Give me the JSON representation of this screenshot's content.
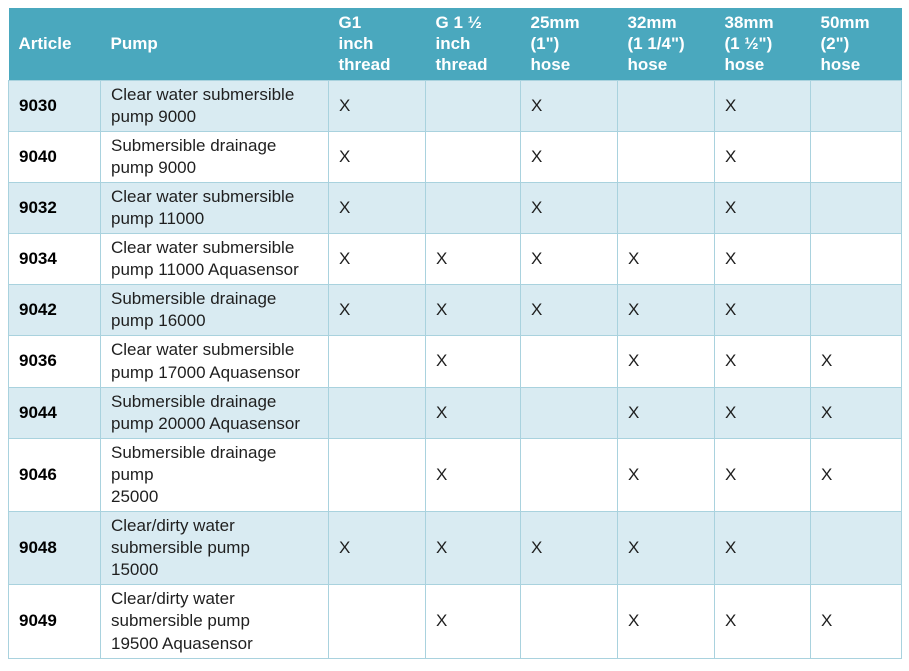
{
  "colors": {
    "header_bg": "#4AA8BE",
    "band_bg": "#D9EBF2",
    "border_color": "#A9D2DE",
    "header_text": "#FFFFFF",
    "body_text": "#1F1F1F",
    "article_text": "#000000"
  },
  "table": {
    "columns": [
      "Article",
      "Pump",
      "G1\ninch\nthread",
      "G 1 ½\ninch\nthread",
      "25mm\n(1\")\nhose",
      "32mm\n(1 1/4\")\nhose",
      "38mm\n(1 ½\")\nhose",
      "50mm\n(2\")\nhose"
    ],
    "mark_symbol": "X",
    "rows": [
      {
        "article": "9030",
        "pump": "Clear water submersible\npump 9000",
        "marks": [
          "X",
          "",
          "X",
          "",
          "X",
          ""
        ]
      },
      {
        "article": "9040",
        "pump": "Submersible drainage\npump 9000",
        "marks": [
          "X",
          "",
          "X",
          "",
          "X",
          ""
        ]
      },
      {
        "article": "9032",
        "pump": "Clear water submersible\npump 11000",
        "marks": [
          "X",
          "",
          "X",
          "",
          "X",
          ""
        ]
      },
      {
        "article": "9034",
        "pump": "Clear water submersible\npump 11000 Aquasensor",
        "marks": [
          "X",
          "X",
          "X",
          "X",
          "X",
          ""
        ]
      },
      {
        "article": "9042",
        "pump": "Submersible drainage\npump 16000",
        "marks": [
          "X",
          "X",
          "X",
          "X",
          "X",
          ""
        ]
      },
      {
        "article": "9036",
        "pump": "Clear water submersible\npump 17000 Aquasensor",
        "marks": [
          "",
          "X",
          "",
          "X",
          "X",
          "X"
        ]
      },
      {
        "article": "9044",
        "pump": "Submersible drainage\npump 20000 Aquasensor",
        "marks": [
          "",
          "X",
          "",
          "X",
          "X",
          "X"
        ]
      },
      {
        "article": "9046",
        "pump": "Submersible drainage\npump\n25000",
        "marks": [
          "",
          "X",
          "",
          "X",
          "X",
          "X"
        ]
      },
      {
        "article": "9048",
        "pump": "Clear/dirty water\nsubmersible pump\n15000",
        "marks": [
          "X",
          "X",
          "X",
          "X",
          "X",
          ""
        ]
      },
      {
        "article": "9049",
        "pump": "Clear/dirty water\nsubmersible pump\n19500 Aquasensor",
        "marks": [
          "",
          "X",
          "",
          "X",
          "X",
          "X"
        ]
      }
    ]
  }
}
